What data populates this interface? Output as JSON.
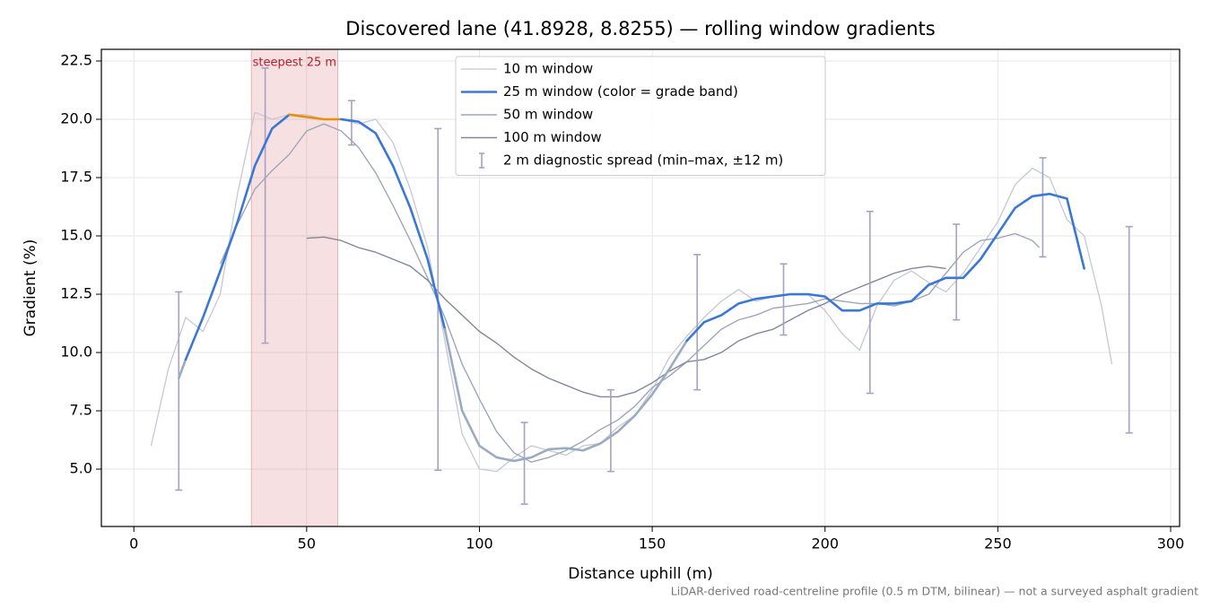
{
  "chart_data": {
    "type": "line",
    "title": "Discovered lane (41.8928, 8.8255) — rolling window gradients",
    "xlabel": "Distance uphill (m)",
    "ylabel": "Gradient (%)",
    "footnote": "LiDAR-derived road-centreline profile (0.5 m DTM, bilinear) — not a surveyed asphalt gradient",
    "xlim": [
      -9.4,
      302.6
    ],
    "ylim": [
      2.54,
      23.0
    ],
    "xticks": [
      0,
      50,
      100,
      150,
      200,
      250,
      300
    ],
    "yticks": [
      {
        "value": 5,
        "label": "5.0"
      },
      7.5,
      {
        "value": 10,
        "label": "10.0"
      },
      12.5,
      {
        "value": 15,
        "label": "15.0"
      },
      17.5,
      {
        "value": 20,
        "label": "20.0"
      },
      22.5
    ],
    "grid": true,
    "legend": "upper center",
    "highlight": {
      "x": [
        34,
        59
      ],
      "label": "steepest 25 m",
      "color": "#d9646e"
    },
    "series": [
      {
        "name": "10 m window",
        "color": "#c4c8d4",
        "width": 1.3,
        "x": [
          5,
          10,
          15,
          20,
          25,
          30,
          35,
          40,
          45,
          50,
          55,
          60,
          65,
          70,
          75,
          80,
          85,
          90,
          95,
          100,
          105,
          110,
          115,
          120,
          125,
          130,
          135,
          140,
          145,
          150,
          155,
          160,
          165,
          170,
          175,
          180,
          185,
          190,
          195,
          200,
          205,
          210,
          215,
          220,
          225,
          230,
          235,
          240,
          245,
          250,
          255,
          260,
          265,
          270,
          275,
          280,
          283
        ],
        "values": [
          6.0,
          9.3,
          11.5,
          10.9,
          12.5,
          16.8,
          20.3,
          20.0,
          20.2,
          20.2,
          20.0,
          20.0,
          19.8,
          20.0,
          19.0,
          17.0,
          14.5,
          10.5,
          6.5,
          5.0,
          4.9,
          5.5,
          6.0,
          5.8,
          5.6,
          6.0,
          6.1,
          6.8,
          7.3,
          8.4,
          9.8,
          10.7,
          11.5,
          12.2,
          12.7,
          12.2,
          12.4,
          12.5,
          12.5,
          11.8,
          10.8,
          10.1,
          12.0,
          13.1,
          13.5,
          13.0,
          12.6,
          13.4,
          14.5,
          15.6,
          17.2,
          17.9,
          17.5,
          15.7,
          15.0,
          12.0,
          9.5
        ]
      },
      {
        "name": "25 m window (color = grade band)",
        "color": "#3a78d4",
        "width": 2.6,
        "grade_band_limits": [
          10,
          20
        ],
        "grade_band_colors": [
          "#9aabc2",
          "#3a78d4",
          "#e8900c"
        ],
        "x": [
          13,
          15,
          20,
          25,
          30,
          35,
          40,
          45,
          50,
          55,
          60,
          65,
          70,
          75,
          80,
          85,
          90,
          95,
          100,
          105,
          110,
          115,
          120,
          125,
          130,
          135,
          140,
          145,
          150,
          155,
          160,
          165,
          170,
          175,
          180,
          185,
          190,
          195,
          200,
          205,
          210,
          215,
          220,
          225,
          230,
          235,
          240,
          245,
          250,
          255,
          260,
          265,
          270,
          275
        ],
        "values": [
          8.9,
          9.7,
          11.5,
          13.5,
          15.6,
          18.0,
          19.6,
          20.2,
          20.1,
          20.0,
          20.0,
          19.9,
          19.4,
          18.0,
          16.2,
          14.0,
          11.0,
          7.5,
          6.0,
          5.5,
          5.35,
          5.5,
          5.85,
          5.9,
          5.8,
          6.1,
          6.6,
          7.3,
          8.2,
          9.3,
          10.5,
          11.3,
          11.6,
          12.1,
          12.3,
          12.4,
          12.5,
          12.5,
          12.4,
          11.8,
          11.8,
          12.1,
          12.1,
          12.2,
          12.9,
          13.2,
          13.2,
          14.0,
          15.1,
          16.2,
          16.7,
          16.8,
          16.6,
          13.6
        ]
      },
      {
        "name": "50 m window",
        "color": "#9ea6b8",
        "width": 1.4,
        "x": [
          25,
          30,
          35,
          40,
          45,
          50,
          55,
          60,
          65,
          70,
          75,
          80,
          85,
          90,
          95,
          100,
          105,
          110,
          115,
          120,
          125,
          130,
          135,
          140,
          145,
          150,
          155,
          160,
          165,
          170,
          175,
          180,
          185,
          190,
          195,
          200,
          205,
          210,
          215,
          220,
          225,
          230,
          235,
          240,
          245,
          250,
          255,
          260,
          262
        ],
        "values": [
          13.8,
          15.5,
          17.0,
          17.8,
          18.5,
          19.5,
          19.8,
          19.5,
          18.8,
          17.7,
          16.3,
          14.8,
          13.2,
          11.5,
          9.5,
          8.0,
          6.6,
          5.7,
          5.3,
          5.5,
          5.8,
          6.2,
          6.7,
          7.1,
          7.7,
          8.5,
          9.0,
          9.6,
          10.3,
          11.0,
          11.4,
          11.6,
          11.9,
          12.0,
          12.1,
          12.3,
          12.2,
          12.1,
          12.1,
          12.0,
          12.2,
          12.5,
          13.4,
          14.3,
          14.8,
          14.9,
          15.1,
          14.8,
          14.5
        ]
      },
      {
        "name": "100 m window",
        "color": "#818899",
        "width": 1.4,
        "x": [
          50,
          55,
          60,
          65,
          70,
          75,
          80,
          85,
          90,
          95,
          100,
          105,
          110,
          115,
          120,
          125,
          130,
          135,
          140,
          145,
          150,
          155,
          160,
          165,
          170,
          175,
          180,
          185,
          190,
          195,
          200,
          205,
          210,
          215,
          220,
          225,
          230,
          235
        ],
        "values": [
          14.9,
          14.95,
          14.8,
          14.5,
          14.3,
          14.0,
          13.7,
          13.1,
          12.3,
          11.6,
          10.9,
          10.4,
          9.8,
          9.3,
          8.9,
          8.6,
          8.3,
          8.1,
          8.1,
          8.3,
          8.7,
          9.2,
          9.6,
          9.7,
          10.0,
          10.5,
          10.8,
          11.0,
          11.4,
          11.8,
          12.1,
          12.5,
          12.8,
          13.1,
          13.4,
          13.6,
          13.7,
          13.6
        ]
      },
      {
        "name": "2 m diagnostic spread (min–max, ±12 m)",
        "type": "errorbar",
        "color": "#a6a2c2",
        "x": [
          13,
          38,
          63,
          88,
          113,
          138,
          163,
          188,
          213,
          238,
          263,
          288
        ],
        "low": [
          4.1,
          10.4,
          18.9,
          4.95,
          3.5,
          4.9,
          8.4,
          10.75,
          8.25,
          11.4,
          14.1,
          6.55
        ],
        "high": [
          12.6,
          22.2,
          20.8,
          19.6,
          7.0,
          8.4,
          14.2,
          13.8,
          16.05,
          15.5,
          18.35,
          15.4
        ]
      }
    ]
  }
}
